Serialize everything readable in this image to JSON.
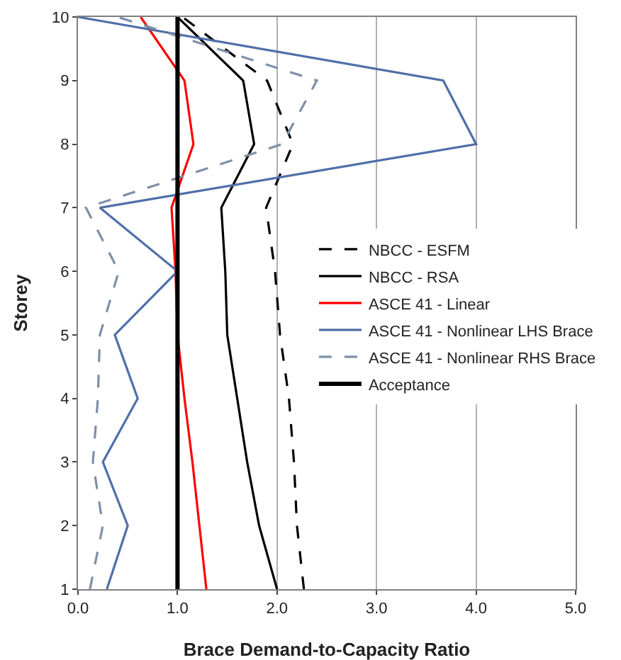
{
  "chart_data": {
    "type": "line",
    "orientation": "horizontal",
    "xlabel": "Brace Demand-to-Capacity Ratio",
    "ylabel": "Storey",
    "x": [
      1,
      2,
      3,
      4,
      5,
      6,
      7,
      8,
      9,
      10
    ],
    "series": [
      {
        "name": "NBCC - ESFM",
        "color": "#000000",
        "line_style": "dashed",
        "values": [
          2.27,
          2.2,
          2.17,
          2.12,
          2.03,
          1.98,
          1.89,
          2.16,
          1.9,
          1.05
        ]
      },
      {
        "name": "NBCC - RSA",
        "color": "#000000",
        "line_style": "solid",
        "values": [
          2.0,
          1.82,
          1.7,
          1.6,
          1.5,
          1.48,
          1.44,
          1.77,
          1.66,
          1.0
        ]
      },
      {
        "name": "ASCE 41 - Linear",
        "color": "#ff0000",
        "line_style": "solid",
        "values": [
          1.29,
          1.22,
          1.15,
          1.07,
          1.0,
          0.98,
          0.94,
          1.16,
          1.07,
          0.63
        ]
      },
      {
        "name": "ASCE 41 - Nonlinear LHS Brace",
        "color": "#4f6fa8",
        "line_style": "solid",
        "values": [
          0.29,
          0.5,
          0.25,
          0.6,
          0.37,
          1.0,
          0.22,
          4.0,
          3.67,
          0.0
        ]
      },
      {
        "name": "ASCE 41 - Nonlinear RHS Brace",
        "color": "#7f8fa8",
        "line_style": "dashed",
        "values": [
          0.12,
          0.25,
          0.15,
          0.2,
          0.22,
          0.41,
          0.08,
          2.05,
          2.4,
          0.4
        ]
      },
      {
        "name": "Acceptance",
        "color": "#000000",
        "line_style": "solid",
        "values": [
          1,
          1,
          1,
          1,
          1,
          1,
          1,
          1,
          1,
          1
        ]
      }
    ],
    "xlim": [
      0,
      5
    ],
    "xticks": [
      {
        "value": 0,
        "label": "0.0"
      },
      {
        "value": 1,
        "label": "1.0"
      },
      {
        "value": 2,
        "label": "2.0"
      },
      {
        "value": 3,
        "label": "3.0"
      },
      {
        "value": 4,
        "label": "4.0"
      },
      {
        "value": 5,
        "label": "5.0"
      }
    ],
    "ylim": [
      1,
      10
    ],
    "yticks": [
      1,
      2,
      3,
      4,
      5,
      6,
      7,
      8,
      9,
      10
    ],
    "grid": "x",
    "legend": "right",
    "marker": "none"
  }
}
